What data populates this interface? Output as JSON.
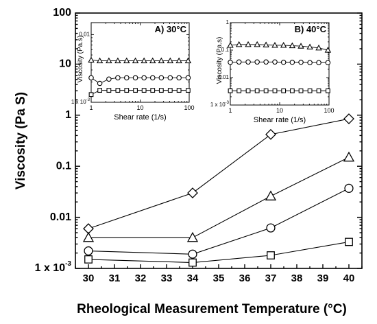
{
  "chart_data": [
    {
      "type": "line",
      "title": "",
      "xlabel": "Rheological Measurement Temperature (°C)",
      "ylabel": "Viscosity (Pa S)",
      "x_scale": "linear",
      "y_scale": "log",
      "xlim": [
        29.5,
        40.5
      ],
      "ylim": [
        0.001,
        100
      ],
      "x_ticks": [
        30,
        31,
        32,
        33,
        34,
        35,
        36,
        37,
        38,
        39,
        40
      ],
      "x_tick_labels": [
        "30",
        "31",
        "32",
        "33",
        "34",
        "35",
        "36",
        "37",
        "38",
        "39",
        "40"
      ],
      "y_ticks": [
        0.001,
        0.01,
        0.1,
        1,
        10,
        100
      ],
      "y_tick_labels": [
        "1 x 10",
        "0.01",
        "0.1",
        "1",
        "10",
        "100"
      ],
      "y_tick_exponent": "-3",
      "grid": false,
      "legend": "none",
      "series": [
        {
          "marker": "diamond",
          "x": [
            30,
            34,
            37,
            40
          ],
          "values": [
            0.006,
            0.03,
            0.42,
            0.85
          ]
        },
        {
          "marker": "triangle",
          "x": [
            30,
            34,
            37,
            40
          ],
          "values": [
            0.004,
            0.004,
            0.026,
            0.15
          ]
        },
        {
          "marker": "circle",
          "x": [
            30,
            34,
            37,
            40
          ],
          "values": [
            0.0022,
            0.0019,
            0.0062,
            0.037
          ]
        },
        {
          "marker": "square",
          "x": [
            30,
            34,
            37,
            40
          ],
          "values": [
            0.0015,
            0.0013,
            0.0018,
            0.0033
          ]
        }
      ]
    },
    {
      "type": "line",
      "title": "A) 30°C",
      "xlabel": "Shear rate (1/s)",
      "ylabel": "Viscosity (Pa.s)",
      "x_scale": "log",
      "y_scale": "log",
      "xlim": [
        1,
        100
      ],
      "ylim": [
        0.001,
        0.015
      ],
      "x_ticks": [
        1,
        10,
        100
      ],
      "x_tick_labels": [
        "1",
        "10",
        "100"
      ],
      "y_ticks": [
        0.001,
        0.01
      ],
      "y_tick_labels": [
        "1 x 10",
        "0.01"
      ],
      "y_tick_exponent": "-3",
      "series": [
        {
          "marker": "triangle",
          "x": [
            1,
            1.5,
            2.3,
            3.5,
            5.3,
            8,
            12,
            18,
            27,
            41,
            62,
            95
          ],
          "values": [
            0.0042,
            0.0041,
            0.0041,
            0.0041,
            0.0041,
            0.0041,
            0.0041,
            0.0041,
            0.0041,
            0.0041,
            0.0041,
            0.0041
          ]
        },
        {
          "marker": "circle",
          "x": [
            1,
            1.5,
            2.3,
            3.5,
            5.3,
            8,
            12,
            18,
            27,
            41,
            62,
            95
          ],
          "values": [
            0.0023,
            0.0019,
            0.0022,
            0.0023,
            0.0023,
            0.0023,
            0.0023,
            0.0023,
            0.0023,
            0.0023,
            0.0023,
            0.0023
          ]
        },
        {
          "marker": "square",
          "x": [
            1,
            1.5,
            2.3,
            3.5,
            5.3,
            8,
            12,
            18,
            27,
            41,
            62,
            95
          ],
          "values": [
            0.0013,
            0.0015,
            0.0015,
            0.0015,
            0.0015,
            0.0015,
            0.0015,
            0.0015,
            0.0015,
            0.0015,
            0.0015,
            0.0015
          ]
        }
      ]
    },
    {
      "type": "line",
      "title": "B) 40°C",
      "xlabel": "Shear rate (1/s)",
      "ylabel": "Viscosity (Pa.s)",
      "x_scale": "log",
      "y_scale": "log",
      "xlim": [
        1,
        100
      ],
      "ylim": [
        0.001,
        1
      ],
      "x_ticks": [
        1,
        10,
        100
      ],
      "x_tick_labels": [
        "1",
        "10",
        "100"
      ],
      "y_ticks": [
        0.001,
        0.01,
        0.1,
        1
      ],
      "y_tick_labels": [
        "1 x 10",
        "0.01",
        "0.1",
        "1"
      ],
      "y_tick_exponent": "-3",
      "series": [
        {
          "marker": "triangle",
          "x": [
            1,
            1.5,
            2.3,
            3.5,
            5.3,
            8,
            12,
            18,
            27,
            41,
            62,
            95
          ],
          "values": [
            0.15,
            0.16,
            0.16,
            0.16,
            0.155,
            0.15,
            0.15,
            0.145,
            0.14,
            0.13,
            0.12,
            0.1
          ]
        },
        {
          "marker": "circle",
          "x": [
            1,
            1.5,
            2.3,
            3.5,
            5.3,
            8,
            12,
            18,
            27,
            41,
            62,
            95
          ],
          "values": [
            0.036,
            0.037,
            0.037,
            0.037,
            0.037,
            0.037,
            0.036,
            0.036,
            0.036,
            0.035,
            0.035,
            0.035
          ]
        },
        {
          "marker": "square",
          "x": [
            1,
            1.5,
            2.3,
            3.5,
            5.3,
            8,
            12,
            18,
            27,
            41,
            62,
            95
          ],
          "values": [
            0.0033,
            0.0033,
            0.0033,
            0.0033,
            0.0033,
            0.0033,
            0.0033,
            0.0033,
            0.0033,
            0.0033,
            0.0033,
            0.0033
          ]
        }
      ]
    }
  ]
}
